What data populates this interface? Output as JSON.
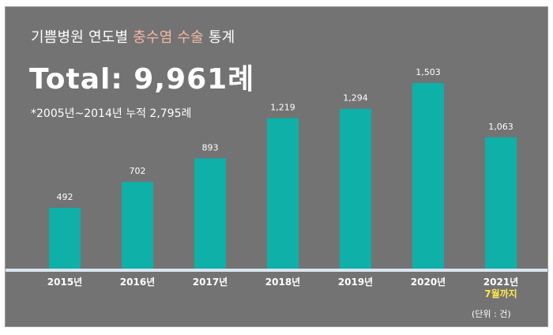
{
  "header": {
    "title_prefix": "기쁨병원 연도별 ",
    "title_highlight": "충수염 수술",
    "title_suffix": " 통계",
    "total_label": "Total:",
    "total_value": "9,961례",
    "note": "*2005년~2014년  누적 2,795례",
    "unit": "(단위 : 건)"
  },
  "colors": {
    "background": "#737373",
    "bar": "#0fb0a8",
    "baseline": "#d9e6f0",
    "highlight_title": "#f2b8a4",
    "highlight_sublabel": "#ffe84d"
  },
  "chart_data": {
    "type": "bar",
    "categories": [
      "2015년",
      "2016년",
      "2017년",
      "2018년",
      "2019년",
      "2020년",
      "2021년"
    ],
    "category_sublabels": [
      "",
      "",
      "",
      "",
      "",
      "",
      "7월까지"
    ],
    "values": [
      492,
      702,
      893,
      1219,
      1294,
      1503,
      1063
    ],
    "value_labels": [
      "492",
      "702",
      "893",
      "1,219",
      "1,294",
      "1,503",
      "1,063"
    ],
    "title": "기쁨병원 연도별 충수염 수술 통계",
    "xlabel": "",
    "ylabel": "",
    "ylim": [
      0,
      1503
    ],
    "grid": false,
    "legend": "none"
  }
}
